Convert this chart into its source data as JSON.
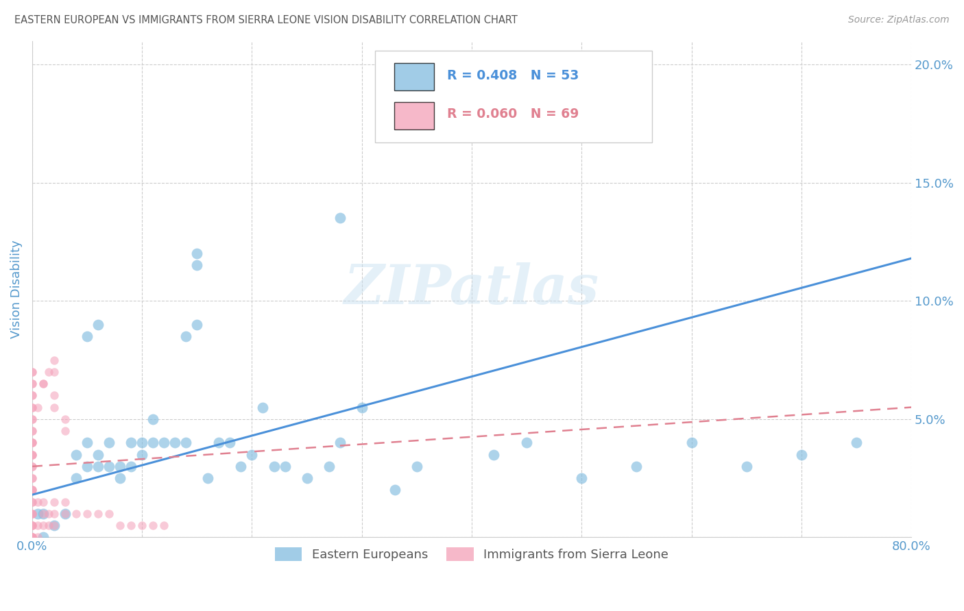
{
  "title": "EASTERN EUROPEAN VS IMMIGRANTS FROM SIERRA LEONE VISION DISABILITY CORRELATION CHART",
  "source": "Source: ZipAtlas.com",
  "ylabel": "Vision Disability",
  "xlim": [
    0.0,
    0.8
  ],
  "ylim": [
    0.0,
    0.21
  ],
  "xticks": [
    0.0,
    0.1,
    0.2,
    0.3,
    0.4,
    0.5,
    0.6,
    0.7,
    0.8
  ],
  "xticklabels": [
    "0.0%",
    "",
    "",
    "",
    "",
    "",
    "",
    "",
    "80.0%"
  ],
  "yticks": [
    0.0,
    0.05,
    0.1,
    0.15,
    0.2
  ],
  "yticklabels": [
    "",
    "5.0%",
    "10.0%",
    "15.0%",
    "20.0%"
  ],
  "blue_color": "#82bce0",
  "pink_color": "#f4a0b8",
  "blue_line_color": "#4a90d9",
  "pink_line_color": "#e08090",
  "legend_label_blue": "Eastern Europeans",
  "legend_label_pink": "Immigrants from Sierra Leone",
  "watermark": "ZIPatlas",
  "blue_scatter_x": [
    0.005,
    0.01,
    0.01,
    0.02,
    0.03,
    0.04,
    0.04,
    0.05,
    0.05,
    0.06,
    0.06,
    0.07,
    0.07,
    0.08,
    0.08,
    0.09,
    0.09,
    0.1,
    0.1,
    0.11,
    0.11,
    0.12,
    0.13,
    0.14,
    0.15,
    0.15,
    0.16,
    0.17,
    0.18,
    0.19,
    0.2,
    0.21,
    0.22,
    0.23,
    0.25,
    0.27,
    0.28,
    0.3,
    0.33,
    0.35,
    0.42,
    0.5,
    0.55,
    0.6,
    0.65,
    0.7,
    0.75,
    0.28,
    0.05,
    0.06,
    0.14,
    0.15,
    0.45
  ],
  "blue_scatter_y": [
    0.01,
    0.01,
    0.0,
    0.005,
    0.01,
    0.025,
    0.035,
    0.03,
    0.04,
    0.03,
    0.035,
    0.03,
    0.04,
    0.03,
    0.025,
    0.03,
    0.04,
    0.035,
    0.04,
    0.04,
    0.05,
    0.04,
    0.04,
    0.04,
    0.115,
    0.12,
    0.025,
    0.04,
    0.04,
    0.03,
    0.035,
    0.055,
    0.03,
    0.03,
    0.025,
    0.03,
    0.04,
    0.055,
    0.02,
    0.03,
    0.035,
    0.025,
    0.03,
    0.04,
    0.03,
    0.035,
    0.04,
    0.135,
    0.085,
    0.09,
    0.085,
    0.09,
    0.04
  ],
  "pink_scatter_x": [
    0.0,
    0.0,
    0.0,
    0.0,
    0.0,
    0.0,
    0.0,
    0.0,
    0.0,
    0.0,
    0.0,
    0.0,
    0.0,
    0.0,
    0.0,
    0.0,
    0.0,
    0.0,
    0.0,
    0.0,
    0.0,
    0.0,
    0.0,
    0.0,
    0.0,
    0.0,
    0.0,
    0.0,
    0.0,
    0.0,
    0.0,
    0.0,
    0.0,
    0.0,
    0.0,
    0.005,
    0.005,
    0.005,
    0.01,
    0.01,
    0.01,
    0.015,
    0.015,
    0.02,
    0.02,
    0.02,
    0.03,
    0.03,
    0.04,
    0.05,
    0.06,
    0.07,
    0.08,
    0.09,
    0.1,
    0.11,
    0.12,
    0.01,
    0.02,
    0.02,
    0.03,
    0.03,
    0.02,
    0.02,
    0.015,
    0.01,
    0.005,
    0.0,
    0.0
  ],
  "pink_scatter_y": [
    0.0,
    0.0,
    0.0,
    0.005,
    0.005,
    0.01,
    0.01,
    0.015,
    0.015,
    0.02,
    0.02,
    0.025,
    0.025,
    0.03,
    0.03,
    0.035,
    0.035,
    0.04,
    0.04,
    0.045,
    0.045,
    0.05,
    0.05,
    0.055,
    0.055,
    0.06,
    0.06,
    0.065,
    0.065,
    0.07,
    0.07,
    0.0,
    0.005,
    0.01,
    0.02,
    0.0,
    0.005,
    0.015,
    0.005,
    0.01,
    0.015,
    0.005,
    0.01,
    0.005,
    0.01,
    0.015,
    0.01,
    0.015,
    0.01,
    0.01,
    0.01,
    0.01,
    0.005,
    0.005,
    0.005,
    0.005,
    0.005,
    0.065,
    0.055,
    0.06,
    0.05,
    0.045,
    0.07,
    0.075,
    0.07,
    0.065,
    0.055,
    0.04,
    0.035
  ],
  "blue_line_x0": 0.0,
  "blue_line_y0": 0.018,
  "blue_line_x1": 0.8,
  "blue_line_y1": 0.118,
  "pink_line_x0": 0.0,
  "pink_line_y0": 0.03,
  "pink_line_x1": 0.8,
  "pink_line_y1": 0.055,
  "grid_color": "#cccccc",
  "axis_label_color": "#5599cc",
  "title_color": "#555555",
  "source_color": "#999999"
}
